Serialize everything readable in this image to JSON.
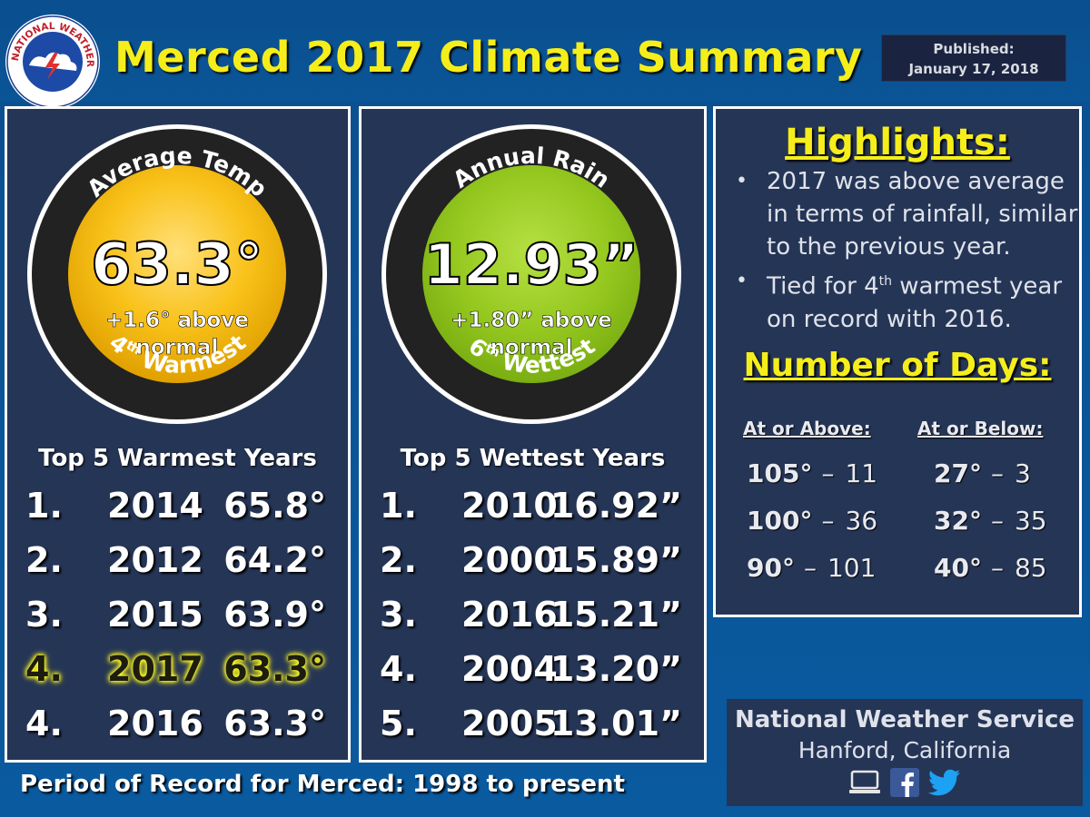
{
  "logo": {
    "text_top": "NATIONAL WEATHER SERVICE"
  },
  "title": "Merced 2017 Climate Summary",
  "published": {
    "label": "Published:",
    "date": "January 17, 2018"
  },
  "temp_panel": {
    "dial_label": "Average Temp",
    "value": "63.3°",
    "delta_line1": "+1.6° above",
    "delta_line2": "normal",
    "rank_num": "4",
    "rank_sup": "th",
    "rank_word": "Warmest",
    "list_title": "Top 5 Warmest Years",
    "rows": [
      {
        "rank": "1.",
        "year": "2014",
        "value": "65.8°",
        "highlight": false
      },
      {
        "rank": "2.",
        "year": "2012",
        "value": "64.2°",
        "highlight": false
      },
      {
        "rank": "3.",
        "year": "2015",
        "value": "63.9°",
        "highlight": false
      },
      {
        "rank": "4.",
        "year": "2017",
        "value": "63.3°",
        "highlight": true
      },
      {
        "rank": "4.",
        "year": "2016",
        "value": "63.3°",
        "highlight": false
      }
    ]
  },
  "rain_panel": {
    "dial_label": "Annual Rain",
    "value": "12.93”",
    "delta_line1": "+1.80” above",
    "delta_line2": "normal",
    "rank_num": "6",
    "rank_sup": "th",
    "rank_word": "Wettest",
    "list_title": "Top 5 Wettest Years",
    "rows": [
      {
        "rank": "1.",
        "year": "2010",
        "value": "16.92”",
        "highlight": false
      },
      {
        "rank": "2.",
        "year": "2000",
        "value": "15.89”",
        "highlight": false
      },
      {
        "rank": "3.",
        "year": "2016",
        "value": "15.21”",
        "highlight": false
      },
      {
        "rank": "4.",
        "year": "2004",
        "value": "13.20”",
        "highlight": false
      },
      {
        "rank": "5.",
        "year": "2005",
        "value": "13.01”",
        "highlight": false
      }
    ]
  },
  "highlights": {
    "title": "Highlights:",
    "bullets": [
      {
        "lines": [
          "2017 was above average",
          "in terms of rainfall, similar",
          "to the previous year."
        ]
      },
      {
        "pre": "Tied for 4",
        "sup": "th",
        "post": " warmest year",
        "line2": "on record with 2016."
      }
    ],
    "bullet_glyph": "•"
  },
  "days": {
    "title": "Number of Days:",
    "above_head": "At or Above:",
    "below_head": "At or Below:",
    "sep": "–",
    "above": [
      {
        "temp": "105°",
        "count": "11"
      },
      {
        "temp": "100°",
        "count": "36"
      },
      {
        "temp": "90°",
        "count": "101"
      }
    ],
    "below": [
      {
        "temp": "27°",
        "count": "3"
      },
      {
        "temp": "32°",
        "count": "35"
      },
      {
        "temp": "40°",
        "count": "85"
      }
    ]
  },
  "footer": {
    "period": "Period of Record for Merced: 1998 to present"
  },
  "nws": {
    "name": "National Weather Service",
    "location": "Hanford, California"
  },
  "colors": {
    "accent_yellow": "#f5ee1a",
    "panel": "#253556",
    "temp_dial": "#f5b400",
    "rain_dial": "#8dc21f"
  },
  "icons": [
    "computer-icon",
    "facebook-icon",
    "twitter-icon"
  ]
}
